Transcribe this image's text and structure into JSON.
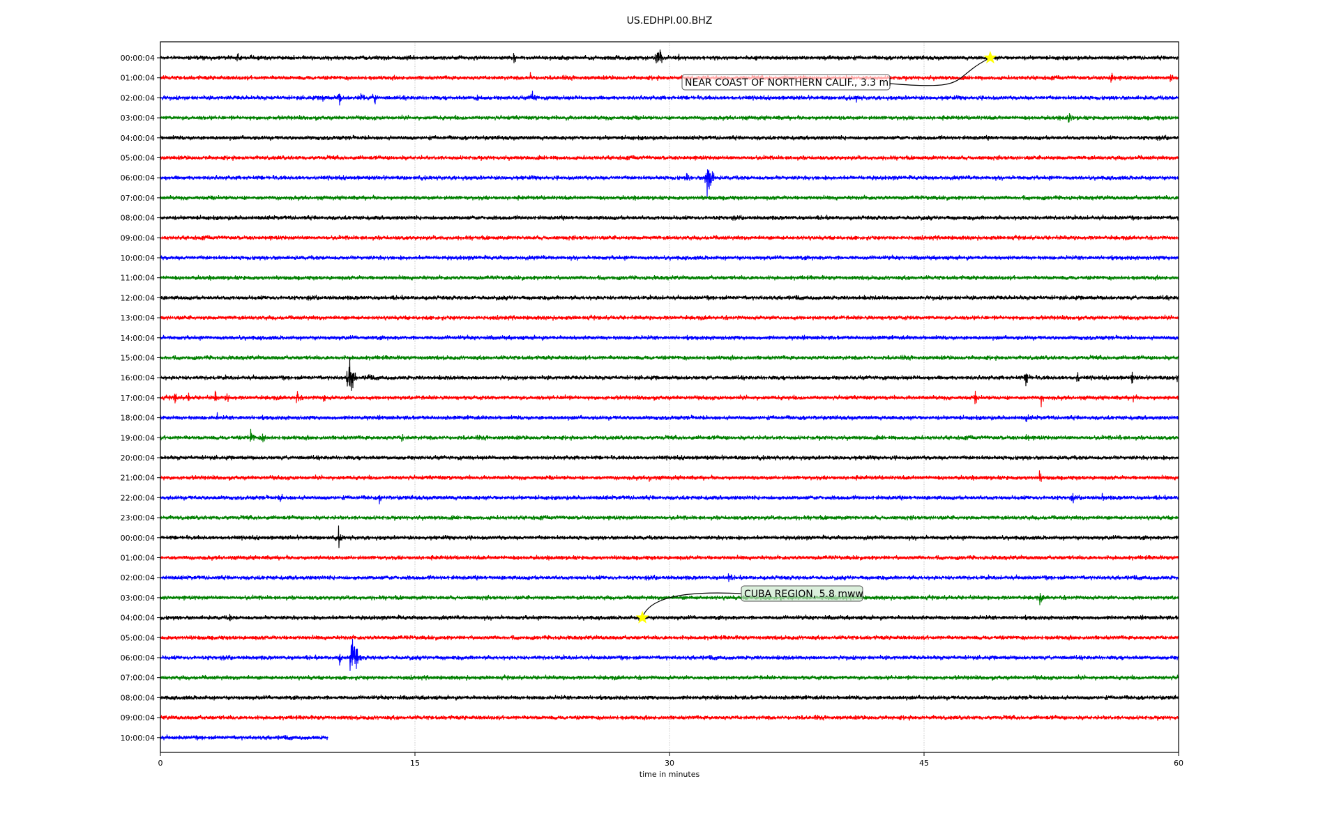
{
  "chart_data": {
    "type": "line",
    "title": "US.EDHPI.00.BHZ",
    "xlabel": "time in minutes",
    "ylabel": "",
    "xlim": [
      0,
      60
    ],
    "xticks": [
      "0",
      "15",
      "30",
      "45",
      "60"
    ],
    "grid": "vertical",
    "series_colors": [
      "#000000",
      "#ff0000",
      "#0000ff",
      "#008000"
    ],
    "rows": [
      "00:00:04",
      "01:00:04",
      "02:00:04",
      "03:00:04",
      "04:00:04",
      "05:00:04",
      "06:00:04",
      "07:00:04",
      "08:00:04",
      "09:00:04",
      "10:00:04",
      "11:00:04",
      "12:00:04",
      "13:00:04",
      "14:00:04",
      "15:00:04",
      "16:00:04",
      "17:00:04",
      "18:00:04",
      "19:00:04",
      "20:00:04",
      "21:00:04",
      "22:00:04",
      "23:00:04",
      "00:00:04",
      "01:00:04",
      "02:00:04",
      "03:00:04",
      "04:00:04",
      "05:00:04",
      "06:00:04",
      "07:00:04",
      "08:00:04",
      "09:00:04",
      "10:00:04"
    ],
    "last_row_end_minute": 9.9,
    "bursts": [
      {
        "row": 0,
        "minute": 4.5,
        "amp": 6
      },
      {
        "row": 0,
        "minute": 20.8,
        "amp": 8
      },
      {
        "row": 0,
        "minute": 29.3,
        "amp": 18
      },
      {
        "row": 0,
        "minute": 30.5,
        "amp": 7
      },
      {
        "row": 1,
        "minute": 21.8,
        "amp": 7
      },
      {
        "row": 1,
        "minute": 56,
        "amp": 9
      },
      {
        "row": 1,
        "minute": 59.5,
        "amp": 8
      },
      {
        "row": 2,
        "minute": 9.5,
        "amp": 10
      },
      {
        "row": 2,
        "minute": 10.5,
        "amp": 10
      },
      {
        "row": 2,
        "minute": 11.8,
        "amp": 11
      },
      {
        "row": 2,
        "minute": 12.6,
        "amp": 11
      },
      {
        "row": 2,
        "minute": 18.6,
        "amp": 8
      },
      {
        "row": 2,
        "minute": 21.9,
        "amp": 11
      },
      {
        "row": 2,
        "minute": 41,
        "amp": 6
      },
      {
        "row": 3,
        "minute": 23.9,
        "amp": 6
      },
      {
        "row": 3,
        "minute": 53.5,
        "amp": 10
      },
      {
        "row": 6,
        "minute": 32.2,
        "amp": 38
      },
      {
        "row": 6,
        "minute": 31,
        "amp": 7
      },
      {
        "row": 16,
        "minute": 11.1,
        "amp": 32
      },
      {
        "row": 16,
        "minute": 12.2,
        "amp": 8
      },
      {
        "row": 16,
        "minute": 51,
        "amp": 12
      },
      {
        "row": 16,
        "minute": 54,
        "amp": 8
      },
      {
        "row": 16,
        "minute": 57.2,
        "amp": 9
      },
      {
        "row": 16,
        "minute": 59.8,
        "amp": 10
      },
      {
        "row": 17,
        "minute": 0.8,
        "amp": 9
      },
      {
        "row": 17,
        "minute": 1.6,
        "amp": 8
      },
      {
        "row": 17,
        "minute": 3.2,
        "amp": 8
      },
      {
        "row": 17,
        "minute": 3.9,
        "amp": 8
      },
      {
        "row": 17,
        "minute": 8,
        "amp": 10
      },
      {
        "row": 17,
        "minute": 9.6,
        "amp": 7
      },
      {
        "row": 17,
        "minute": 23.8,
        "amp": 7
      },
      {
        "row": 17,
        "minute": 48,
        "amp": 8
      },
      {
        "row": 17,
        "minute": 51.9,
        "amp": 8
      },
      {
        "row": 17,
        "minute": 57.3,
        "amp": 7
      },
      {
        "row": 18,
        "minute": 3.3,
        "amp": 6
      },
      {
        "row": 18,
        "minute": 51,
        "amp": 7
      },
      {
        "row": 19,
        "minute": 5.3,
        "amp": 11
      },
      {
        "row": 19,
        "minute": 6,
        "amp": 8
      },
      {
        "row": 19,
        "minute": 14.2,
        "amp": 7
      },
      {
        "row": 19,
        "minute": 51,
        "amp": 7
      },
      {
        "row": 19,
        "minute": 56.5,
        "amp": 7
      },
      {
        "row": 21,
        "minute": 28.8,
        "amp": 7
      },
      {
        "row": 21,
        "minute": 51.8,
        "amp": 7
      },
      {
        "row": 22,
        "minute": 7,
        "amp": 8
      },
      {
        "row": 22,
        "minute": 12.9,
        "amp": 6
      },
      {
        "row": 22,
        "minute": 53.7,
        "amp": 7
      },
      {
        "row": 22,
        "minute": 55.5,
        "amp": 6
      },
      {
        "row": 24,
        "minute": 10.5,
        "amp": 10
      },
      {
        "row": 26,
        "minute": 33.4,
        "amp": 10
      },
      {
        "row": 27,
        "minute": 51.8,
        "amp": 8
      },
      {
        "row": 28,
        "minute": 4,
        "amp": 7
      },
      {
        "row": 30,
        "minute": 11.3,
        "amp": 45
      },
      {
        "row": 30,
        "minute": 10.5,
        "amp": 9
      }
    ],
    "annotations": [
      {
        "text": "NEAR COAST OF NORTHERN CALIF., 3.3 ml",
        "row": 0,
        "minute": 48.9,
        "box_color": "#ffffff"
      },
      {
        "text": "CUBA REGION, 5.8 mww",
        "row": 28,
        "minute": 28.4,
        "box_color": "#c8e6c9"
      }
    ],
    "marker_color": "#ffff00"
  }
}
